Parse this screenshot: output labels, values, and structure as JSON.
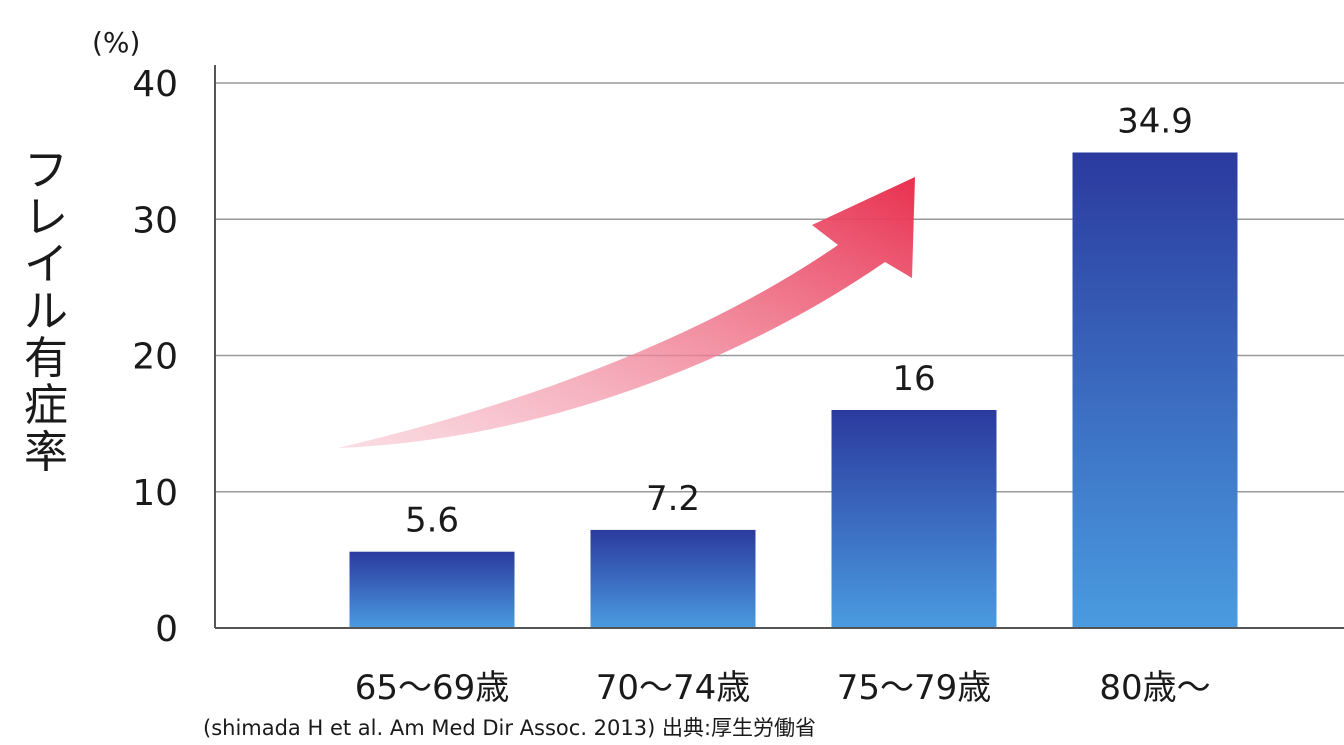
{
  "chart_data": {
    "type": "bar",
    "categories": [
      "65～69歳",
      "70～74歳",
      "75～79歳",
      "80歳～"
    ],
    "values": [
      5.6,
      7.2,
      16,
      34.9
    ],
    "data_labels": [
      "5.6",
      "7.2",
      "16",
      "34.9"
    ],
    "ylabel": "フレイル有症率",
    "unit": "(%)",
    "ylim": [
      0,
      40
    ],
    "yticks": [
      0,
      10,
      20,
      30,
      40
    ],
    "grid": true,
    "source": "(shimada H et al. Am Med Dir Assoc. 2013) 出典:厚生労働省",
    "colors": {
      "bar_top": "#2b3a9e",
      "bar_bottom": "#4a9be0",
      "arrow_start": "#f7c6d2",
      "arrow_end": "#e8304f",
      "grid": "#9a9a9a",
      "axis": "#555555"
    }
  }
}
